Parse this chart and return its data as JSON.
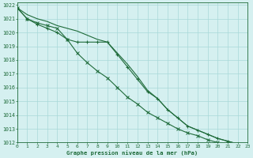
{
  "x": [
    0,
    1,
    2,
    3,
    4,
    5,
    6,
    7,
    8,
    9,
    10,
    11,
    12,
    13,
    14,
    15,
    16,
    17,
    18,
    19,
    20,
    21,
    22,
    23
  ],
  "line1": [
    1021.8,
    1021.3,
    1021.0,
    1020.8,
    1020.5,
    1020.3,
    1020.1,
    1019.8,
    1019.5,
    1019.3,
    1018.5,
    1017.7,
    1016.8,
    1015.8,
    1015.2,
    1014.4,
    1013.8,
    1013.2,
    1012.9,
    1012.6,
    1012.3,
    1012.1,
    1011.9,
    1011.7
  ],
  "line2": [
    1021.8,
    1021.0,
    1020.6,
    1020.3,
    1020.0,
    1019.5,
    1019.3,
    1019.3,
    1019.3,
    1019.3,
    1018.4,
    1017.5,
    1016.6,
    1015.7,
    1015.2,
    1014.4,
    1013.8,
    1013.2,
    1012.9,
    1012.6,
    1012.3,
    1012.1,
    1011.9,
    1011.7
  ],
  "line3": [
    1021.8,
    1021.0,
    1020.7,
    1020.5,
    1020.3,
    1019.5,
    1018.5,
    1017.8,
    1017.2,
    1016.7,
    1016.0,
    1015.3,
    1014.8,
    1014.2,
    1013.8,
    1013.4,
    1013.0,
    1012.7,
    1012.5,
    1012.2,
    1012.0,
    1011.9,
    1011.8,
    1011.7
  ],
  "bg_color": "#d5f0f0",
  "grid_color": "#a8d8d8",
  "line_color": "#1f6b3a",
  "xlabel": "Graphe pression niveau de la mer (hPa)",
  "ylim_min": 1012,
  "ylim_max": 1022,
  "xlim_min": 0,
  "xlim_max": 23
}
